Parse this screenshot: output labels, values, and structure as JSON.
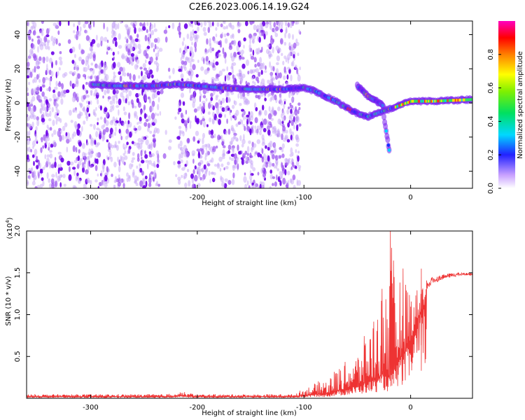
{
  "title": "C2E6.2023.006.14.19.G24",
  "chart_data": [
    {
      "type": "heatmap",
      "xlabel": "Height of straight line (km)",
      "ylabel": "Frequency (Hz)",
      "xlim": [
        -360,
        58
      ],
      "ylim": [
        -50,
        48
      ],
      "xticks": [
        -300,
        -200,
        -100,
        0
      ],
      "yticks": [
        -40,
        -20,
        0,
        20,
        40
      ],
      "colorbar": {
        "label": "Normalized spectral amplitude",
        "range": [
          0,
          1
        ],
        "ticks": [
          "0.0",
          "0.2",
          "0.4",
          "0.6",
          "0.8"
        ]
      },
      "noise_region_x": [
        -360,
        -110
      ],
      "main_tone_track": {
        "x": [
          -300,
          -280,
          -240,
          -220,
          -200,
          -180,
          -150,
          -120,
          -100,
          -90,
          -80,
          -70,
          -60,
          -50,
          -40,
          0,
          20,
          58
        ],
        "freq_hz": [
          11,
          10,
          10,
          11,
          10,
          9,
          8,
          8,
          9,
          7,
          4,
          1,
          -3,
          -6,
          -8,
          1,
          1,
          2
        ]
      },
      "branch_tracks": [
        {
          "x": [
            -50,
            -40,
            -32,
            -25
          ],
          "freq_hz": [
            10,
            4,
            1,
            -2
          ]
        },
        {
          "x": [
            -25,
            -20
          ],
          "freq_hz": [
            -8,
            -28
          ]
        }
      ],
      "grid": false
    },
    {
      "type": "line",
      "xlabel": "Height of straight line (km)",
      "ylabel": "SNR (10 * v/v)",
      "multiplier": "(x10",
      "multiplier_exp": "4",
      "multiplier_close": ")",
      "xlim": [
        -360,
        58
      ],
      "ylim": [
        0,
        2.0
      ],
      "xticks": [
        -300,
        -200,
        -100,
        0
      ],
      "yticks": [
        "0.5",
        "1.0",
        "1.5",
        "2.0"
      ],
      "color": "#ee3333",
      "envelope": {
        "x": [
          -360,
          -230,
          -215,
          -200,
          -110,
          -100,
          -90,
          -80,
          -70,
          -60,
          -50,
          -40,
          -30,
          -25,
          -20,
          -15,
          -10,
          -5,
          0,
          5,
          10,
          20,
          30,
          40,
          50,
          58
        ],
        "base": [
          0.02,
          0.02,
          0.03,
          0.02,
          0.02,
          0.03,
          0.05,
          0.05,
          0.08,
          0.12,
          0.15,
          0.2,
          0.25,
          0.3,
          0.25,
          0.35,
          0.5,
          0.55,
          0.7,
          0.9,
          1.05,
          1.3,
          1.38,
          1.42,
          1.45,
          1.45
        ],
        "peak": [
          0.05,
          0.05,
          0.08,
          0.05,
          0.05,
          0.12,
          0.18,
          0.25,
          0.35,
          0.45,
          0.55,
          0.85,
          1.2,
          1.6,
          2.0,
          1.6,
          1.5,
          1.65,
          1.3,
          1.3,
          1.4,
          1.45,
          1.48,
          1.5,
          1.5,
          1.5
        ]
      },
      "notable_points": [
        {
          "x": -19,
          "y": 2.0
        },
        {
          "x": 10,
          "y": 1.55
        },
        {
          "x": 10,
          "y": 0.33
        }
      ],
      "grid": false
    }
  ]
}
